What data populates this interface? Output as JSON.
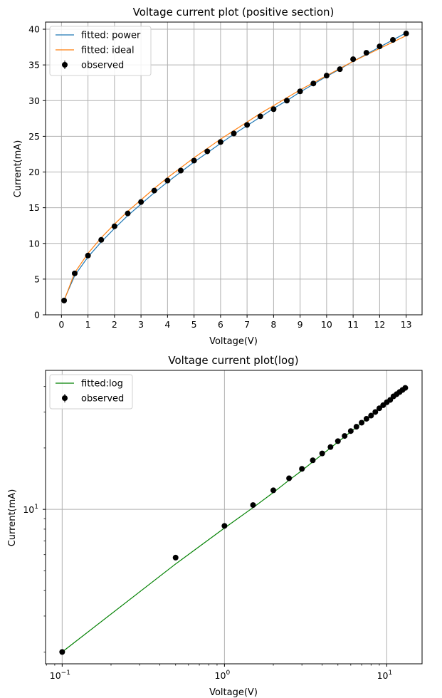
{
  "chart_data": [
    {
      "type": "line",
      "title": "Voltage current plot (positive section)",
      "xlabel": "Voltage(V)",
      "ylabel": "Current(mA)",
      "xlim": [
        -0.6,
        13.6
      ],
      "ylim": [
        0,
        41
      ],
      "xticks": [
        0,
        1,
        2,
        3,
        4,
        5,
        6,
        7,
        8,
        9,
        10,
        11,
        12,
        13
      ],
      "yticks": [
        0,
        5,
        10,
        15,
        20,
        25,
        30,
        35,
        40
      ],
      "grid": true,
      "legend_position": "upper-left",
      "series": [
        {
          "name": "fitted: power",
          "kind": "line",
          "color": "#1f77b4",
          "x": [
            0.1,
            0.5,
            1,
            1.5,
            2,
            2.5,
            3,
            3.5,
            4,
            4.5,
            5,
            5.5,
            6,
            6.5,
            7,
            7.5,
            8,
            8.5,
            9,
            9.5,
            10,
            10.5,
            11,
            11.5,
            12,
            12.5,
            13
          ],
          "y": [
            2.1,
            5.5,
            8.1,
            10.2,
            12.1,
            13.9,
            15.5,
            17.1,
            18.6,
            20.0,
            21.4,
            22.7,
            24.0,
            25.3,
            26.5,
            27.7,
            28.9,
            30.0,
            31.2,
            32.3,
            33.4,
            34.4,
            35.5,
            36.5,
            37.5,
            38.5,
            39.5
          ]
        },
        {
          "name": "fitted: ideal",
          "kind": "line",
          "color": "#ff7f0e",
          "x": [
            0.1,
            0.5,
            1,
            1.5,
            2,
            2.5,
            3,
            3.5,
            4,
            4.5,
            5,
            5.5,
            6,
            6.5,
            7,
            7.5,
            8,
            8.5,
            9,
            9.5,
            10,
            10.5,
            11,
            11.5,
            12,
            12.5,
            13
          ],
          "y": [
            2.0,
            5.9,
            8.6,
            10.8,
            12.7,
            14.5,
            16.1,
            17.7,
            19.2,
            20.6,
            22.0,
            23.3,
            24.6,
            25.8,
            27.0,
            28.2,
            29.3,
            30.4,
            31.5,
            32.5,
            33.5,
            34.5,
            35.5,
            36.4,
            37.3,
            38.2,
            39.1
          ]
        },
        {
          "name": "observed",
          "kind": "errorbar",
          "color": "#000000",
          "x": [
            0.1,
            0.5,
            1,
            1.5,
            2,
            2.5,
            3,
            3.5,
            4,
            4.5,
            5,
            5.5,
            6,
            6.5,
            7,
            7.5,
            8,
            8.5,
            9,
            9.5,
            10,
            10.5,
            11,
            11.5,
            12,
            12.5,
            13
          ],
          "y": [
            2.0,
            5.8,
            8.3,
            10.5,
            12.4,
            14.2,
            15.8,
            17.4,
            18.8,
            20.2,
            21.6,
            22.9,
            24.2,
            25.4,
            26.6,
            27.8,
            28.8,
            30.0,
            31.3,
            32.4,
            33.5,
            34.4,
            35.8,
            36.7,
            37.6,
            38.5,
            39.4
          ]
        }
      ]
    },
    {
      "type": "line",
      "title": "Voltage current plot(log)",
      "xlabel": "Voltage(V)",
      "ylabel": "Current(mA)",
      "xscale": "log",
      "yscale": "log",
      "xlim": [
        0.079,
        16.5
      ],
      "ylim": [
        1.75,
        48
      ],
      "xticks": [
        {
          "value": 0.1,
          "base": "10",
          "exp": "−1"
        },
        {
          "value": 1,
          "base": "10",
          "exp": "0"
        },
        {
          "value": 10,
          "base": "10",
          "exp": "1"
        }
      ],
      "yticks": [
        {
          "value": 10,
          "base": "10",
          "exp": "1"
        }
      ],
      "grid": true,
      "legend_position": "upper-left",
      "series": [
        {
          "name": "fitted:log",
          "kind": "line",
          "color": "#008000",
          "x": [
            0.1,
            0.5,
            1,
            1.5,
            2,
            2.5,
            3,
            3.5,
            4,
            4.5,
            5,
            5.5,
            6,
            6.5,
            7,
            7.5,
            8,
            8.5,
            9,
            9.5,
            10,
            10.5,
            11,
            11.5,
            12,
            12.5,
            13
          ],
          "y": [
            2.0,
            5.4,
            8.1,
            10.2,
            12.1,
            13.9,
            15.5,
            17.1,
            18.6,
            20.0,
            21.4,
            22.7,
            24.0,
            25.3,
            26.5,
            27.7,
            28.9,
            30.0,
            31.2,
            32.3,
            33.4,
            34.4,
            35.5,
            36.5,
            37.5,
            38.5,
            39.5
          ]
        },
        {
          "name": "observed",
          "kind": "errorbar",
          "color": "#000000",
          "x": [
            0.1,
            0.5,
            1,
            1.5,
            2,
            2.5,
            3,
            3.5,
            4,
            4.5,
            5,
            5.5,
            6,
            6.5,
            7,
            7.5,
            8,
            8.5,
            9,
            9.5,
            10,
            10.5,
            11,
            11.5,
            12,
            12.5,
            13
          ],
          "y": [
            2.0,
            5.8,
            8.3,
            10.5,
            12.4,
            14.2,
            15.8,
            17.4,
            18.8,
            20.2,
            21.6,
            22.9,
            24.2,
            25.4,
            26.6,
            27.8,
            28.8,
            30.0,
            31.3,
            32.4,
            33.5,
            34.4,
            35.8,
            36.7,
            37.6,
            38.5,
            39.4
          ]
        }
      ]
    }
  ]
}
